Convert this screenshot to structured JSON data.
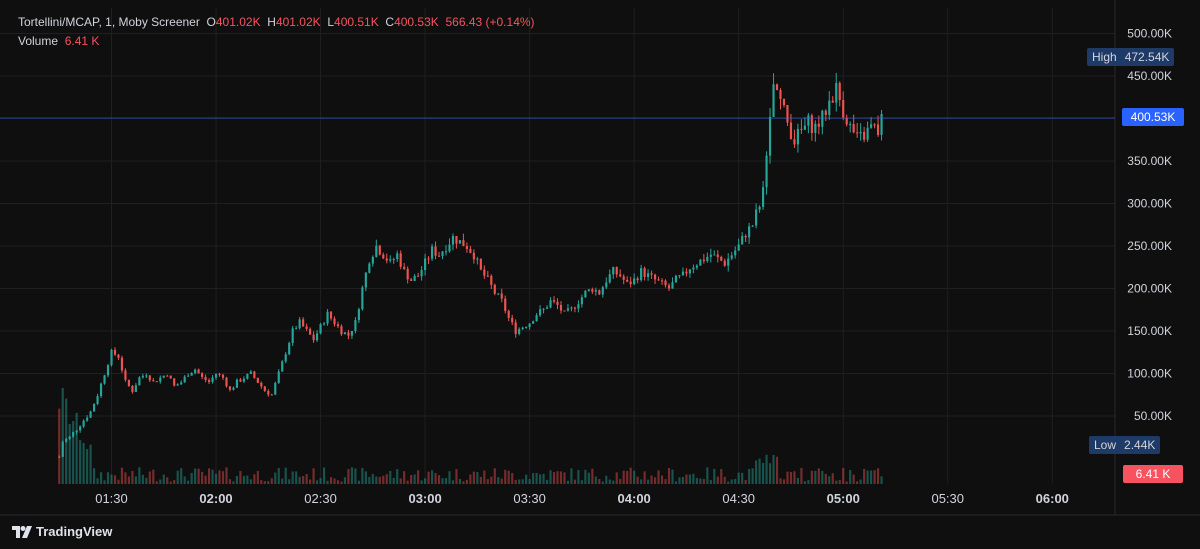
{
  "legend": {
    "symbol": "Tortellini/MCAP, 1, Moby Screener",
    "o_label": "O",
    "o_value": "401.02K",
    "h_label": "H",
    "h_value": "401.02K",
    "l_label": "L",
    "l_value": "400.51K",
    "c_label": "C",
    "c_value": "400.53K",
    "change": "566.43 (+0.14%)",
    "volume_label": "Volume",
    "volume_value": "6.41 K"
  },
  "tags": {
    "high_label": "High",
    "high_value": "472.54K",
    "low_label": "Low",
    "low_value": "2.44K",
    "last_value": "400.53K",
    "volume_value": "6.41 K"
  },
  "brand": {
    "name": "TradingView",
    "logo_icon": "tradingview-logo-icon"
  },
  "colors": {
    "up": "#26a69a",
    "down": "#ef5350",
    "background": "#0f0f0f",
    "grid": "#1f1f24",
    "last_line": "#2962ff"
  },
  "chart_data": {
    "type": "candlestick",
    "title": "Tortellini/MCAP, 1, Moby Screener",
    "y_ticks": [
      "500.00K",
      "450.00K",
      "400.00K",
      "350.00K",
      "300.00K",
      "250.00K",
      "200.00K",
      "150.00K",
      "100.00K",
      "50.00K"
    ],
    "y_tick_values": [
      500,
      450,
      400,
      350,
      300,
      250,
      200,
      150,
      100,
      50
    ],
    "x_ticks": [
      "01:30",
      "02:00",
      "02:30",
      "03:00",
      "03:30",
      "04:00",
      "04:30",
      "05:00",
      "05:30",
      "06:00"
    ],
    "x_tick_bold": [
      false,
      true,
      false,
      true,
      false,
      true,
      false,
      true,
      false,
      true
    ],
    "x_tick_minutes": [
      90,
      120,
      150,
      180,
      210,
      240,
      270,
      300,
      330,
      360
    ],
    "x_range_minutes": [
      58,
      378
    ],
    "ylim": [
      -30,
      530
    ],
    "y_unit": "K",
    "price_path": [
      [
        75,
        2
      ],
      [
        76,
        20
      ],
      [
        78,
        25
      ],
      [
        80,
        35
      ],
      [
        82,
        45
      ],
      [
        84,
        55
      ],
      [
        86,
        75
      ],
      [
        88,
        100
      ],
      [
        90,
        125
      ],
      [
        92,
        120
      ],
      [
        94,
        90
      ],
      [
        96,
        80
      ],
      [
        98,
        95
      ],
      [
        100,
        100
      ],
      [
        102,
        90
      ],
      [
        104,
        95
      ],
      [
        106,
        100
      ],
      [
        108,
        85
      ],
      [
        110,
        90
      ],
      [
        112,
        100
      ],
      [
        114,
        105
      ],
      [
        116,
        95
      ],
      [
        118,
        90
      ],
      [
        120,
        100
      ],
      [
        122,
        95
      ],
      [
        124,
        80
      ],
      [
        126,
        90
      ],
      [
        128,
        95
      ],
      [
        130,
        100
      ],
      [
        132,
        90
      ],
      [
        134,
        80
      ],
      [
        136,
        75
      ],
      [
        138,
        100
      ],
      [
        140,
        125
      ],
      [
        142,
        150
      ],
      [
        144,
        160
      ],
      [
        146,
        150
      ],
      [
        148,
        140
      ],
      [
        150,
        155
      ],
      [
        152,
        170
      ],
      [
        154,
        160
      ],
      [
        156,
        150
      ],
      [
        158,
        145
      ],
      [
        160,
        160
      ],
      [
        162,
        200
      ],
      [
        164,
        235
      ],
      [
        166,
        250
      ],
      [
        168,
        240
      ],
      [
        170,
        230
      ],
      [
        172,
        240
      ],
      [
        174,
        220
      ],
      [
        176,
        210
      ],
      [
        178,
        215
      ],
      [
        180,
        230
      ],
      [
        182,
        245
      ],
      [
        184,
        240
      ],
      [
        186,
        250
      ],
      [
        188,
        260
      ],
      [
        190,
        255
      ],
      [
        192,
        250
      ],
      [
        194,
        240
      ],
      [
        196,
        220
      ],
      [
        198,
        210
      ],
      [
        200,
        195
      ],
      [
        202,
        185
      ],
      [
        204,
        165
      ],
      [
        206,
        150
      ],
      [
        208,
        155
      ],
      [
        210,
        160
      ],
      [
        212,
        170
      ],
      [
        214,
        175
      ],
      [
        216,
        185
      ],
      [
        218,
        180
      ],
      [
        220,
        170
      ],
      [
        222,
        175
      ],
      [
        224,
        185
      ],
      [
        226,
        195
      ],
      [
        228,
        200
      ],
      [
        230,
        195
      ],
      [
        232,
        210
      ],
      [
        234,
        220
      ],
      [
        236,
        215
      ],
      [
        238,
        205
      ],
      [
        240,
        210
      ],
      [
        242,
        220
      ],
      [
        244,
        215
      ],
      [
        246,
        210
      ],
      [
        248,
        205
      ],
      [
        250,
        200
      ],
      [
        252,
        210
      ],
      [
        254,
        215
      ],
      [
        256,
        225
      ],
      [
        258,
        230
      ],
      [
        260,
        235
      ],
      [
        262,
        240
      ],
      [
        264,
        235
      ],
      [
        266,
        230
      ],
      [
        268,
        240
      ],
      [
        270,
        250
      ],
      [
        272,
        265
      ],
      [
        274,
        275
      ],
      [
        276,
        300
      ],
      [
        278,
        350
      ],
      [
        280,
        440
      ],
      [
        282,
        420
      ],
      [
        284,
        395
      ],
      [
        286,
        375
      ],
      [
        288,
        385
      ],
      [
        290,
        395
      ],
      [
        292,
        390
      ],
      [
        294,
        400
      ],
      [
        296,
        420
      ],
      [
        298,
        435
      ],
      [
        300,
        410
      ],
      [
        302,
        390
      ],
      [
        304,
        375
      ],
      [
        306,
        380
      ],
      [
        308,
        390
      ],
      [
        310,
        385
      ],
      [
        311,
        400
      ]
    ],
    "volume_ylim": [
      0,
      10
    ],
    "last_close": 400.53,
    "session_high": 472.54,
    "session_low": 2.44
  }
}
